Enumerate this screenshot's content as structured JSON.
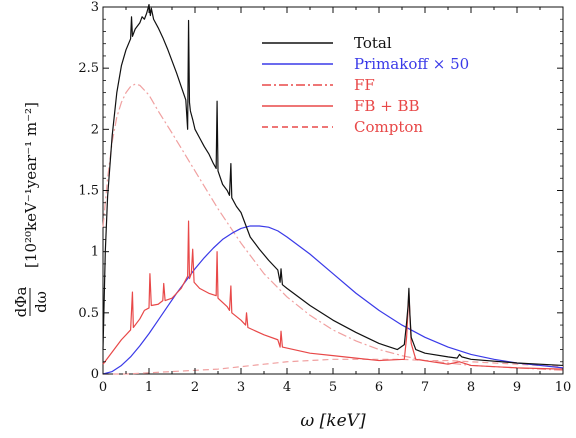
{
  "chart_data": {
    "type": "line",
    "xlabel": "ω [keV]",
    "ylabel": {
      "fraction_numerator": "dΦa",
      "fraction_denominator": "dω",
      "units": "[10²⁰keV⁻¹year⁻¹ m⁻²]"
    },
    "xlim": [
      0,
      10
    ],
    "ylim": [
      0,
      3
    ],
    "x_ticks": [
      "0",
      "1",
      "2",
      "3",
      "4",
      "5",
      "6",
      "7",
      "8",
      "9",
      "10"
    ],
    "y_ticks": [
      "0",
      "0.5",
      "1",
      "1.5",
      "2",
      "2.5",
      "3"
    ],
    "legend_position": "top-right",
    "colors": {
      "black": "#111111",
      "blue": "#3a3ae8",
      "red": "#e84848",
      "pink": "#f0a0a0"
    },
    "series": [
      {
        "name": "Total",
        "color": "#111111",
        "style": "solid",
        "points": [
          [
            0,
            0.2
          ],
          [
            0.05,
            1.0
          ],
          [
            0.1,
            1.45
          ],
          [
            0.2,
            1.95
          ],
          [
            0.3,
            2.3
          ],
          [
            0.4,
            2.52
          ],
          [
            0.5,
            2.65
          ],
          [
            0.6,
            2.74
          ],
          [
            0.62,
            2.92
          ],
          [
            0.64,
            2.76
          ],
          [
            0.7,
            2.82
          ],
          [
            0.8,
            2.87
          ],
          [
            0.85,
            2.92
          ],
          [
            0.9,
            2.9
          ],
          [
            0.95,
            2.95
          ],
          [
            1.0,
            3.02
          ],
          [
            1.03,
            2.93
          ],
          [
            1.05,
            2.99
          ],
          [
            1.1,
            2.9
          ],
          [
            1.2,
            2.83
          ],
          [
            1.3,
            2.75
          ],
          [
            1.4,
            2.66
          ],
          [
            1.5,
            2.56
          ],
          [
            1.6,
            2.46
          ],
          [
            1.7,
            2.35
          ],
          [
            1.8,
            2.24
          ],
          [
            1.84,
            2.0
          ],
          [
            1.86,
            2.89
          ],
          [
            1.88,
            2.22
          ],
          [
            1.9,
            2.15
          ],
          [
            1.95,
            2.08
          ],
          [
            2.0,
            2.0
          ],
          [
            2.1,
            1.93
          ],
          [
            2.2,
            1.86
          ],
          [
            2.3,
            1.8
          ],
          [
            2.4,
            1.72
          ],
          [
            2.46,
            1.68
          ],
          [
            2.48,
            2.23
          ],
          [
            2.5,
            1.66
          ],
          [
            2.6,
            1.55
          ],
          [
            2.7,
            1.5
          ],
          [
            2.75,
            1.46
          ],
          [
            2.78,
            1.72
          ],
          [
            2.8,
            1.44
          ],
          [
            2.9,
            1.37
          ],
          [
            3.0,
            1.32
          ],
          [
            3.1,
            1.22
          ],
          [
            3.2,
            1.12
          ],
          [
            3.4,
            1.02
          ],
          [
            3.6,
            0.93
          ],
          [
            3.8,
            0.85
          ],
          [
            3.85,
            0.75
          ],
          [
            3.87,
            0.86
          ],
          [
            3.9,
            0.73
          ],
          [
            4.0,
            0.7
          ],
          [
            4.5,
            0.56
          ],
          [
            5.0,
            0.44
          ],
          [
            5.5,
            0.34
          ],
          [
            6.0,
            0.25
          ],
          [
            6.4,
            0.2
          ],
          [
            6.55,
            0.24
          ],
          [
            6.6,
            0.42
          ],
          [
            6.63,
            0.55
          ],
          [
            6.65,
            0.7
          ],
          [
            6.67,
            0.5
          ],
          [
            6.7,
            0.3
          ],
          [
            6.8,
            0.2
          ],
          [
            7.0,
            0.17
          ],
          [
            7.5,
            0.14
          ],
          [
            7.7,
            0.13
          ],
          [
            7.75,
            0.16
          ],
          [
            7.8,
            0.14
          ],
          [
            8.0,
            0.12
          ],
          [
            9.0,
            0.09
          ],
          [
            10.0,
            0.07
          ]
        ]
      },
      {
        "name": "Primakoff × 50",
        "color": "#3a3ae8",
        "style": "solid",
        "points": [
          [
            0,
            0.0
          ],
          [
            0.2,
            0.02
          ],
          [
            0.4,
            0.07
          ],
          [
            0.6,
            0.14
          ],
          [
            0.8,
            0.23
          ],
          [
            1.0,
            0.33
          ],
          [
            1.2,
            0.44
          ],
          [
            1.4,
            0.55
          ],
          [
            1.6,
            0.66
          ],
          [
            1.8,
            0.76
          ],
          [
            2.0,
            0.86
          ],
          [
            2.2,
            0.95
          ],
          [
            2.4,
            1.03
          ],
          [
            2.6,
            1.1
          ],
          [
            2.8,
            1.15
          ],
          [
            3.0,
            1.19
          ],
          [
            3.2,
            1.21
          ],
          [
            3.4,
            1.21
          ],
          [
            3.6,
            1.2
          ],
          [
            3.8,
            1.17
          ],
          [
            4.0,
            1.12
          ],
          [
            4.5,
            0.98
          ],
          [
            5.0,
            0.82
          ],
          [
            5.5,
            0.66
          ],
          [
            6.0,
            0.52
          ],
          [
            6.5,
            0.4
          ],
          [
            7.0,
            0.3
          ],
          [
            7.5,
            0.22
          ],
          [
            8.0,
            0.16
          ],
          [
            8.5,
            0.12
          ],
          [
            9.0,
            0.09
          ],
          [
            9.5,
            0.07
          ],
          [
            10.0,
            0.05
          ]
        ]
      },
      {
        "name": "FF",
        "color": "#f0a0a0",
        "style": "dashdot",
        "points": [
          [
            0,
            1.2
          ],
          [
            0.1,
            1.6
          ],
          [
            0.2,
            1.9
          ],
          [
            0.3,
            2.1
          ],
          [
            0.4,
            2.22
          ],
          [
            0.5,
            2.3
          ],
          [
            0.6,
            2.35
          ],
          [
            0.7,
            2.37
          ],
          [
            0.8,
            2.36
          ],
          [
            1.0,
            2.28
          ],
          [
            1.2,
            2.15
          ],
          [
            1.5,
            1.97
          ],
          [
            2.0,
            1.66
          ],
          [
            2.5,
            1.35
          ],
          [
            3.0,
            1.07
          ],
          [
            3.5,
            0.82
          ],
          [
            4.0,
            0.63
          ],
          [
            4.5,
            0.48
          ],
          [
            5.0,
            0.36
          ],
          [
            5.5,
            0.27
          ],
          [
            6.0,
            0.2
          ],
          [
            6.5,
            0.15
          ],
          [
            7.0,
            0.11
          ],
          [
            8.0,
            0.07
          ],
          [
            9.0,
            0.05
          ],
          [
            10.0,
            0.03
          ]
        ]
      },
      {
        "name": "FB + BB",
        "color": "#e84848",
        "style": "solid",
        "points": [
          [
            0,
            0.08
          ],
          [
            0.2,
            0.18
          ],
          [
            0.4,
            0.28
          ],
          [
            0.6,
            0.36
          ],
          [
            0.64,
            0.67
          ],
          [
            0.66,
            0.38
          ],
          [
            0.8,
            0.45
          ],
          [
            0.9,
            0.52
          ],
          [
            1.0,
            0.54
          ],
          [
            1.02,
            0.82
          ],
          [
            1.05,
            0.56
          ],
          [
            1.2,
            0.57
          ],
          [
            1.3,
            0.6
          ],
          [
            1.32,
            0.74
          ],
          [
            1.35,
            0.6
          ],
          [
            1.5,
            0.62
          ],
          [
            1.6,
            0.66
          ],
          [
            1.7,
            0.7
          ],
          [
            1.84,
            0.8
          ],
          [
            1.86,
            1.25
          ],
          [
            1.88,
            0.78
          ],
          [
            1.92,
            0.82
          ],
          [
            1.95,
            1.02
          ],
          [
            1.98,
            0.75
          ],
          [
            2.1,
            0.7
          ],
          [
            2.3,
            0.66
          ],
          [
            2.46,
            0.64
          ],
          [
            2.48,
            1.0
          ],
          [
            2.5,
            0.62
          ],
          [
            2.7,
            0.55
          ],
          [
            2.75,
            0.52
          ],
          [
            2.78,
            0.72
          ],
          [
            2.8,
            0.5
          ],
          [
            3.0,
            0.44
          ],
          [
            3.1,
            0.4
          ],
          [
            3.12,
            0.5
          ],
          [
            3.15,
            0.38
          ],
          [
            3.5,
            0.32
          ],
          [
            3.8,
            0.28
          ],
          [
            3.85,
            0.22
          ],
          [
            3.87,
            0.35
          ],
          [
            3.9,
            0.22
          ],
          [
            4.5,
            0.17
          ],
          [
            5.0,
            0.15
          ],
          [
            5.5,
            0.13
          ],
          [
            6.0,
            0.11
          ],
          [
            6.55,
            0.12
          ],
          [
            6.6,
            0.3
          ],
          [
            6.65,
            0.66
          ],
          [
            6.7,
            0.25
          ],
          [
            6.8,
            0.12
          ],
          [
            7.5,
            0.08
          ],
          [
            7.75,
            0.1
          ],
          [
            8.0,
            0.07
          ],
          [
            9.0,
            0.05
          ],
          [
            10.0,
            0.04
          ]
        ]
      },
      {
        "name": "Compton",
        "color": "#f0a0a0",
        "style": "dashed",
        "points": [
          [
            0,
            0.0
          ],
          [
            0.5,
            0.0
          ],
          [
            1.0,
            0.01
          ],
          [
            1.5,
            0.02
          ],
          [
            2.0,
            0.03
          ],
          [
            2.5,
            0.04
          ],
          [
            3.0,
            0.06
          ],
          [
            3.5,
            0.08
          ],
          [
            4.0,
            0.1
          ],
          [
            4.5,
            0.11
          ],
          [
            5.0,
            0.12
          ],
          [
            5.5,
            0.12
          ],
          [
            6.0,
            0.12
          ],
          [
            6.5,
            0.12
          ],
          [
            7.0,
            0.11
          ],
          [
            7.5,
            0.11
          ],
          [
            8.0,
            0.1
          ],
          [
            8.5,
            0.09
          ],
          [
            9.0,
            0.08
          ],
          [
            9.5,
            0.07
          ],
          [
            10.0,
            0.06
          ]
        ]
      }
    ],
    "legend_items": [
      {
        "label": "Total",
        "color": "#111111",
        "style": "solid",
        "text_color": "#111111"
      },
      {
        "label": "Primakoff × 50",
        "color": "#3a3ae8",
        "style": "solid",
        "text_color": "#3a3ae8"
      },
      {
        "label": "FF",
        "color": "#e84848",
        "style": "dashdot",
        "text_color": "#e84848"
      },
      {
        "label": "FB + BB",
        "color": "#e84848",
        "style": "solid",
        "text_color": "#e84848"
      },
      {
        "label": "Compton",
        "color": "#e84848",
        "style": "dashed",
        "text_color": "#e84848"
      }
    ]
  }
}
